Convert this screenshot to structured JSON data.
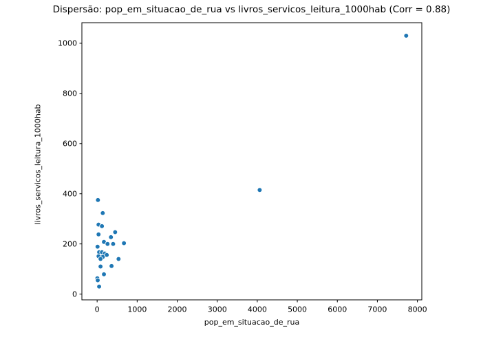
{
  "chart_data": {
    "type": "scatter",
    "title": "Dispersão: pop_em_situacao_de_rua vs livros_servicos_leitura_1000hab (Corr = 0.88)",
    "xlabel": "pop_em_situacao_de_rua",
    "ylabel": "livros_servicos_leitura_1000hab",
    "correlation": 0.88,
    "xlim": [
      -381,
      8110
    ],
    "ylim": [
      -23,
      1082
    ],
    "xticks": [
      0,
      1000,
      2000,
      3000,
      4000,
      5000,
      6000,
      7000,
      8000
    ],
    "yticks": [
      0,
      200,
      400,
      600,
      800,
      1000
    ],
    "grid": false,
    "legend_position": "none",
    "marker_color": "#1f77b4",
    "marker_edge_color": "#ffffff",
    "axis_color": "#000000",
    "points": [
      [
        20,
        375
      ],
      [
        140,
        323
      ],
      [
        35,
        277
      ],
      [
        120,
        271
      ],
      [
        450,
        247
      ],
      [
        35,
        238
      ],
      [
        345,
        227
      ],
      [
        170,
        208
      ],
      [
        260,
        200
      ],
      [
        400,
        200
      ],
      [
        670,
        203
      ],
      [
        10,
        189
      ],
      [
        50,
        167
      ],
      [
        120,
        167
      ],
      [
        190,
        162
      ],
      [
        240,
        156
      ],
      [
        35,
        151
      ],
      [
        140,
        148
      ],
      [
        85,
        140
      ],
      [
        535,
        140
      ],
      [
        360,
        112
      ],
      [
        85,
        110
      ],
      [
        170,
        79
      ],
      [
        5,
        63
      ],
      [
        15,
        55
      ],
      [
        50,
        30
      ],
      [
        4060,
        415
      ],
      [
        7720,
        1030
      ]
    ]
  }
}
